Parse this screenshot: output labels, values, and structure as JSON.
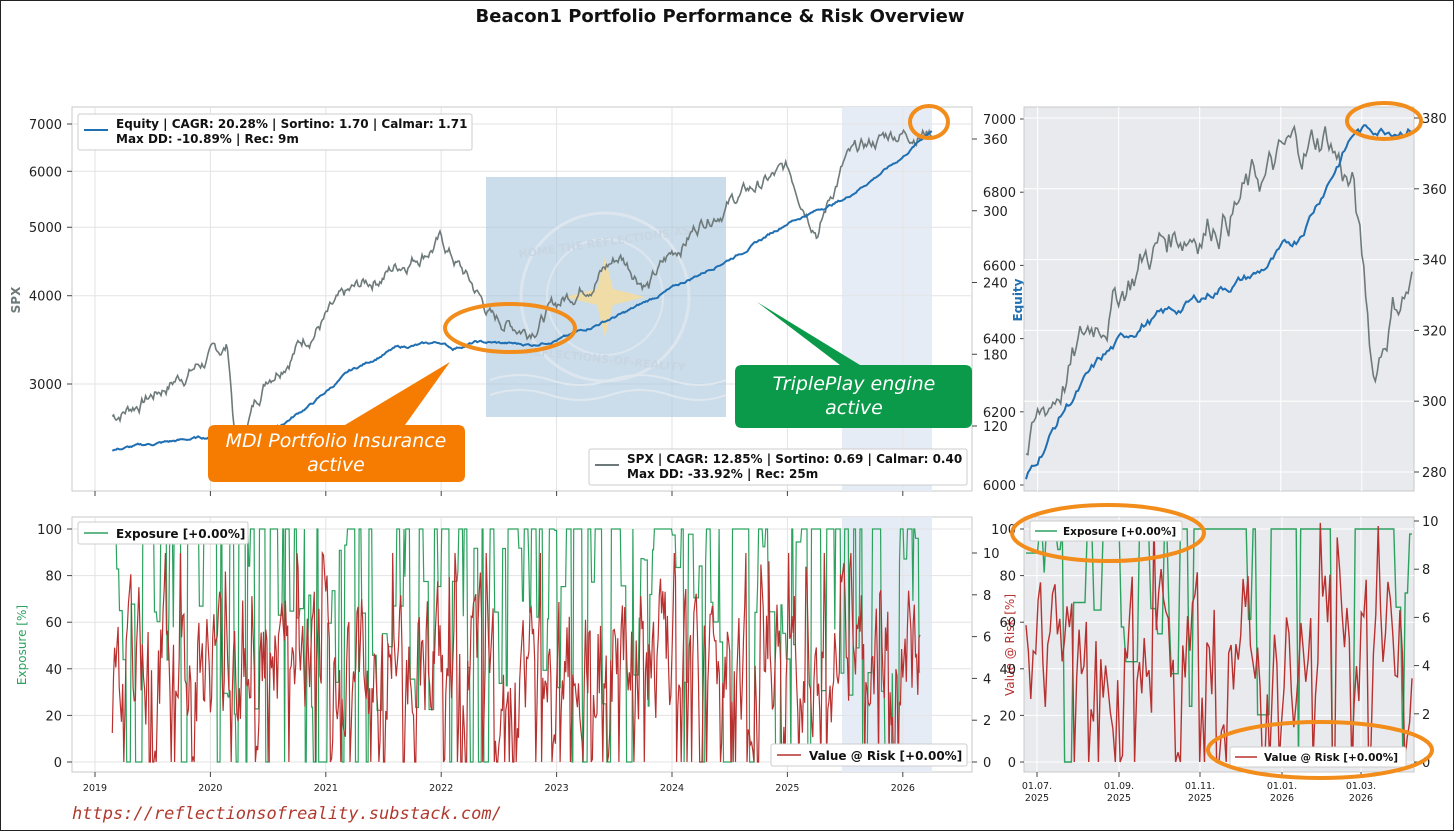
{
  "figure": {
    "title": "Beacon1 Portfolio Performance & Risk Overview",
    "footer_url": "https://reflectionsofreality.substack.com/"
  },
  "annotations": {
    "mdi": {
      "line1": "MDI Portfolio Insurance",
      "line2": "active",
      "color": "#f57c00"
    },
    "tripleplay": {
      "line1": "TriplePlay engine",
      "line2": "active",
      "color": "#0a9a4a"
    },
    "watermark": {
      "top": "HOME THE REFLECTIONS AS",
      "bottom": "REFLECTIONS-OF-REALITY"
    }
  },
  "colors": {
    "equity": "#1f6fb2",
    "spx": "#6e7a7a",
    "exposure": "#2ca25f",
    "var": "#b8312f",
    "highlight": "#e6ecf6",
    "zoom_bg": "#e8eaee",
    "ellipse": "#f28c1a"
  },
  "chart_data": [
    {
      "id": "main-top",
      "type": "line",
      "x_ticks": [
        "2019",
        "2020",
        "2021",
        "2022",
        "2023",
        "2024",
        "2025",
        "2026"
      ],
      "left_axis": {
        "label": "SPX",
        "ticks": [
          "7000",
          "6000",
          "5000",
          "4000",
          "3000"
        ],
        "scale": "log"
      },
      "right_axis": {
        "label": "Equity",
        "ticks": [
          "360",
          "300",
          "240",
          "180",
          "120"
        ]
      },
      "grid": true,
      "legend_top": {
        "line1": "Equity | CAGR: 20.28% | Sortino: 1.70 | Calmar: 1.71",
        "line2": "Max DD: -10.89% | Rec: 9m",
        "placement": "top-left"
      },
      "legend_bottom": {
        "line1": "SPX | CAGR: 12.85% | Sortino: 0.69 | Calmar: 0.40",
        "line2": "Max DD: -33.92% | Rec: 25m",
        "placement": "bottom-right"
      },
      "series": [
        {
          "name": "SPX",
          "axis": "left",
          "x": [
            2019.15,
            2019.5,
            2019.9,
            2020.15,
            2020.22,
            2020.5,
            2020.9,
            2021.3,
            2021.6,
            2021.99,
            2022.45,
            2022.75,
            2023.1,
            2023.55,
            2023.8,
            2024.3,
            2024.55,
            2025.0,
            2025.27,
            2025.5,
            2025.9,
            2026.2
          ],
          "y": [
            2700,
            2900,
            3200,
            3380,
            2400,
            3100,
            3600,
            4100,
            4400,
            4790,
            3700,
            3600,
            4000,
            4550,
            4150,
            5200,
            5500,
            6000,
            5000,
            6200,
            6800,
            6850
          ]
        },
        {
          "name": "Equity",
          "axis": "right",
          "x": [
            2019.15,
            2019.5,
            2019.9,
            2020.2,
            2020.6,
            2020.9,
            2021.2,
            2021.6,
            2021.99,
            2022.1,
            2022.3,
            2022.8,
            2023.1,
            2023.6,
            2024.0,
            2024.6,
            2025.0,
            2025.5,
            2026.0,
            2026.25
          ],
          "y": [
            100,
            105,
            110,
            112,
            120,
            140,
            165,
            185,
            190,
            185,
            190,
            188,
            195,
            215,
            235,
            265,
            290,
            310,
            345,
            368
          ]
        }
      ]
    },
    {
      "id": "zoom-top",
      "type": "line",
      "left_ticks": [
        "7000",
        "6800",
        "6600",
        "6400",
        "6200",
        "6000"
      ],
      "right_ticks": [
        "380",
        "360",
        "340",
        "320",
        "300",
        "280"
      ],
      "series": [
        {
          "name": "SPX",
          "axis": "left",
          "x": [
            0,
            0.1,
            0.2,
            0.3,
            0.4,
            0.5,
            0.6,
            0.7,
            0.78,
            0.85,
            0.9,
            0.95,
            1.0
          ],
          "y": [
            6080,
            6300,
            6480,
            6620,
            6700,
            6750,
            6820,
            6900,
            6960,
            6800,
            6300,
            6500,
            6560
          ]
        },
        {
          "name": "Equity",
          "axis": "right",
          "x": [
            0,
            0.1,
            0.2,
            0.3,
            0.4,
            0.5,
            0.6,
            0.7,
            0.78,
            0.85,
            0.9,
            1.0
          ],
          "y": [
            278,
            298,
            312,
            322,
            326,
            332,
            336,
            345,
            362,
            376,
            377,
            378
          ]
        }
      ]
    },
    {
      "id": "main-bottom",
      "type": "line",
      "x_ticks": [
        "2019",
        "2020",
        "2021",
        "2022",
        "2023",
        "2024",
        "2025",
        "2026"
      ],
      "left_axis": {
        "label": "Exposure [%]",
        "ticks": [
          "100",
          "80",
          "60",
          "40",
          "20",
          "0"
        ]
      },
      "right_axis": {
        "label": "Value @ Risk [%]",
        "ticks": [
          "10",
          "8",
          "6",
          "4",
          "2",
          "0"
        ]
      },
      "legend_exposure": "Exposure [+0.00%]",
      "legend_var": "Value @ Risk [+0.00%]",
      "series": [
        {
          "name": "Exposure [+0.00%]",
          "axis": "left",
          "range": [
            0,
            100
          ]
        },
        {
          "name": "Value @ Risk [+0.00%]",
          "axis": "right",
          "range": [
            0,
            10
          ]
        }
      ]
    },
    {
      "id": "zoom-bottom",
      "type": "line",
      "x_ticks": [
        {
          "day": "01.07.",
          "year": "2025"
        },
        {
          "day": "01.09.",
          "year": "2025"
        },
        {
          "day": "01.11.",
          "year": "2025"
        },
        {
          "day": "01.01.",
          "year": "2026"
        },
        {
          "day": "01.03.",
          "year": "2026"
        }
      ],
      "left_ticks": [
        "100",
        "80",
        "60",
        "40",
        "20",
        "0"
      ],
      "right_ticks": [
        "10",
        "8",
        "6",
        "4",
        "2",
        "0"
      ],
      "legend_exposure": "Exposure [+0.00%]",
      "legend_var": "Value @ Risk [+0.00%]"
    }
  ]
}
